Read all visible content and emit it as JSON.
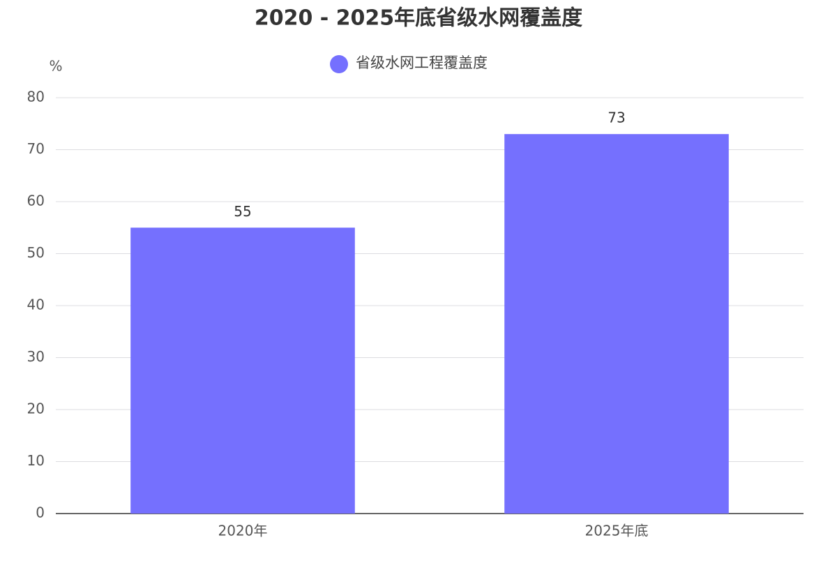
{
  "chart_data": {
    "type": "bar",
    "title": "2020 - 2025年底省级水网覆盖度",
    "y_label": "%",
    "categories": [
      "2020年",
      "2025年底"
    ],
    "series": [
      {
        "name": "省级水网工程覆盖度",
        "color": "#7570fe",
        "values": [
          55,
          73
        ]
      }
    ],
    "ylim": [
      0,
      80
    ],
    "yticks": [
      0,
      10,
      20,
      30,
      40,
      50,
      60,
      70,
      80
    ],
    "grid": true,
    "legend": "top"
  }
}
